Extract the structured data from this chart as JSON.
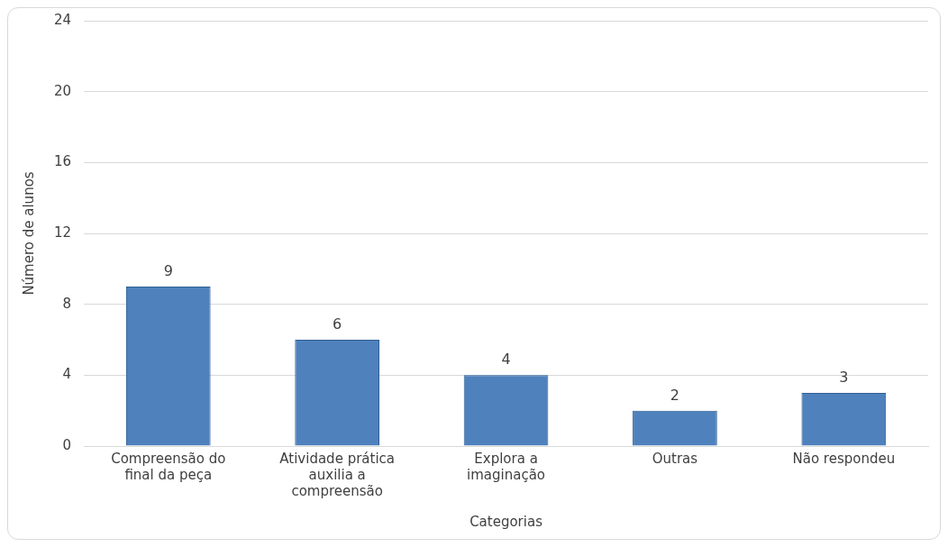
{
  "chart_data": {
    "type": "bar",
    "categories": [
      "Compreensão do final da peça",
      "Atividade prática auxilia a compreensão",
      "Explora a imaginação",
      "Outras",
      "Não respondeu"
    ],
    "values": [
      9,
      6,
      4,
      2,
      3
    ],
    "color": "#4f81bd",
    "xlabel": "Categorias",
    "ylabel": "Número de alunos",
    "ylim": [
      0,
      24
    ],
    "yticks": [
      0,
      4,
      8,
      12,
      16,
      20,
      24
    ],
    "grid": "y",
    "data_labels": true,
    "legend": false
  }
}
